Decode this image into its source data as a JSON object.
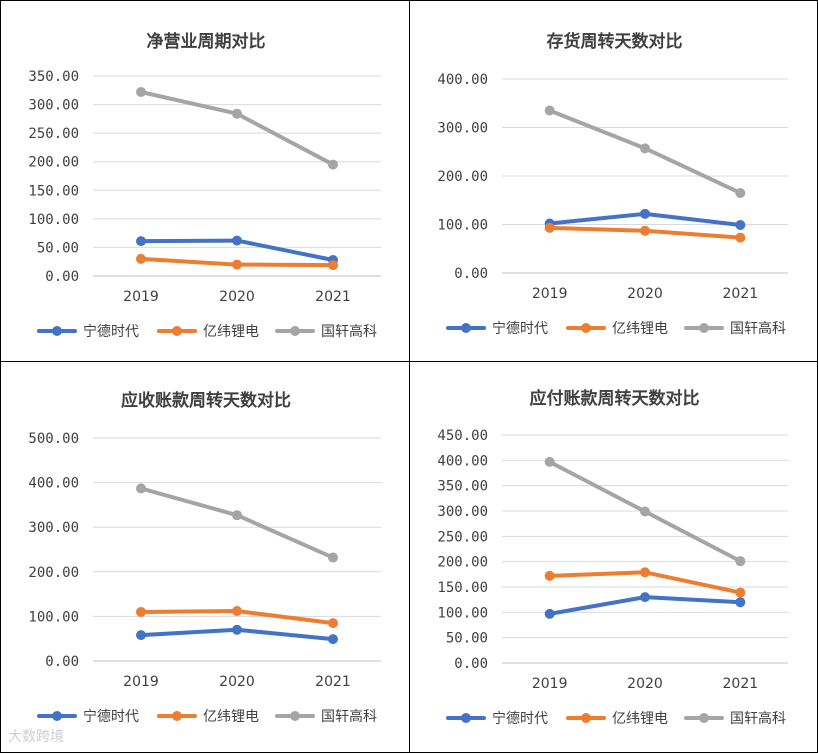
{
  "chart_data": [
    {
      "type": "line",
      "title": "净营业周期对比",
      "categories": [
        "2019",
        "2020",
        "2021"
      ],
      "ylim": [
        0,
        350
      ],
      "ytick_step": 50,
      "ytick_labels": [
        "0.00",
        "50.00",
        "100.00",
        "150.00",
        "200.00",
        "250.00",
        "300.00",
        "350.00"
      ],
      "grid": true,
      "legend": "bottom",
      "series": [
        {
          "name": "宁德时代",
          "color": "#4472c4",
          "values": [
            61,
            62,
            28
          ]
        },
        {
          "name": "亿纬锂电",
          "color": "#ed7d31",
          "values": [
            30,
            20,
            19
          ]
        },
        {
          "name": "国轩高科",
          "color": "#a5a5a5",
          "values": [
            322,
            284,
            195
          ]
        }
      ]
    },
    {
      "type": "line",
      "title": "存货周转天数对比",
      "categories": [
        "2019",
        "2020",
        "2021"
      ],
      "ylim": [
        0,
        400
      ],
      "ytick_step": 100,
      "ytick_labels": [
        "0.00",
        "100.00",
        "200.00",
        "300.00",
        "400.00"
      ],
      "grid": true,
      "legend": "bottom",
      "series": [
        {
          "name": "宁德时代",
          "color": "#4472c4",
          "values": [
            102,
            122,
            99
          ]
        },
        {
          "name": "亿纬锂电",
          "color": "#ed7d31",
          "values": [
            93,
            87,
            73
          ]
        },
        {
          "name": "国轩高科",
          "color": "#a5a5a5",
          "values": [
            335,
            257,
            165
          ]
        }
      ]
    },
    {
      "type": "line",
      "title": "应收账款周转天数对比",
      "categories": [
        "2019",
        "2020",
        "2021"
      ],
      "ylim": [
        0,
        500
      ],
      "ytick_step": 100,
      "ytick_labels": [
        "0.00",
        "100.00",
        "200.00",
        "300.00",
        "400.00",
        "500.00"
      ],
      "grid": true,
      "legend": "bottom",
      "series": [
        {
          "name": "宁德时代",
          "color": "#4472c4",
          "values": [
            58,
            70,
            49
          ]
        },
        {
          "name": "亿纬锂电",
          "color": "#ed7d31",
          "values": [
            110,
            112,
            85
          ]
        },
        {
          "name": "国轩高科",
          "color": "#a5a5a5",
          "values": [
            387,
            327,
            232
          ]
        }
      ]
    },
    {
      "type": "line",
      "title": "应付账款周转天数对比",
      "categories": [
        "2019",
        "2020",
        "2021"
      ],
      "ylim": [
        0,
        450
      ],
      "ytick_step": 50,
      "ytick_labels": [
        "0.00",
        "50.00",
        "100.00",
        "150.00",
        "200.00",
        "250.00",
        "300.00",
        "350.00",
        "400.00",
        "450.00"
      ],
      "grid": true,
      "legend": "bottom",
      "series": [
        {
          "name": "宁德时代",
          "color": "#4472c4",
          "values": [
            97,
            130,
            120
          ]
        },
        {
          "name": "亿纬锂电",
          "color": "#ed7d31",
          "values": [
            172,
            179,
            139
          ]
        },
        {
          "name": "国轩高科",
          "color": "#a5a5a5",
          "values": [
            397,
            299,
            201
          ]
        }
      ]
    }
  ],
  "watermark": "大数跨境"
}
